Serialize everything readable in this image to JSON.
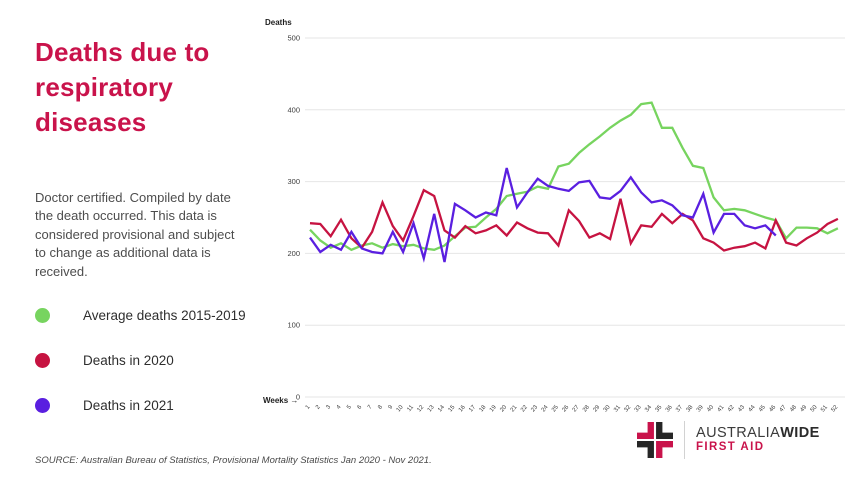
{
  "left_panel": {
    "title": "Deaths due to respiratory diseases",
    "title_color": "#c9134b",
    "description": "Doctor certified. Compiled by date the death occurred. This data is considered provisional and subject to change as additional data is received.",
    "legend": [
      {
        "label": "Average deaths 2015-2019",
        "color": "#77d45f"
      },
      {
        "label": "Deaths in 2020",
        "color": "#c61341"
      },
      {
        "label": "Deaths in 2021",
        "color": "#5a1fe0"
      }
    ],
    "source": "SOURCE: Australian Bureau of Statistics, Provisional Mortality Statistics Jan 2020 - Nov 2021."
  },
  "chart_data": {
    "type": "line",
    "title": "",
    "ylabel": "Deaths",
    "xlabel": "Weeks",
    "xlabel_display": "Weeks →",
    "ylim": [
      0,
      500
    ],
    "yticks": [
      0,
      100,
      200,
      300,
      400,
      500
    ],
    "grid": true,
    "legend_position": "left-panel",
    "x": [
      1,
      2,
      3,
      4,
      5,
      6,
      7,
      8,
      9,
      10,
      11,
      12,
      13,
      14,
      15,
      16,
      17,
      18,
      19,
      20,
      21,
      22,
      23,
      24,
      25,
      26,
      27,
      28,
      29,
      30,
      31,
      32,
      33,
      34,
      35,
      36,
      37,
      38,
      39,
      40,
      41,
      42,
      43,
      44,
      45,
      46,
      47,
      48,
      49,
      50,
      51,
      52
    ],
    "series": [
      {
        "name": "Average deaths 2015-2019",
        "color": "#77d45f",
        "values": [
          233,
          218,
          208,
          214,
          205,
          211,
          214,
          208,
          213,
          210,
          212,
          207,
          205,
          211,
          224,
          236,
          237,
          250,
          262,
          280,
          283,
          286,
          293,
          290,
          321,
          325,
          340,
          352,
          363,
          375,
          385,
          393,
          408,
          410,
          375,
          375,
          347,
          322,
          319,
          278,
          260,
          262,
          260,
          255,
          250,
          246,
          221,
          236,
          236,
          235,
          228,
          235
        ]
      },
      {
        "name": "Deaths in 2020",
        "color": "#c61341",
        "values": [
          242,
          241,
          224,
          247,
          221,
          208,
          230,
          271,
          238,
          218,
          252,
          288,
          280,
          232,
          222,
          238,
          228,
          232,
          239,
          225,
          243,
          235,
          229,
          228,
          211,
          260,
          245,
          222,
          228,
          220,
          276,
          214,
          239,
          237,
          255,
          242,
          255,
          246,
          221,
          215,
          204,
          208,
          210,
          215,
          207,
          246,
          215,
          211,
          221,
          229,
          241,
          248
        ]
      },
      {
        "name": "Deaths in 2021",
        "color": "#5a1fe0",
        "values": [
          222,
          202,
          212,
          205,
          230,
          207,
          202,
          200,
          230,
          202,
          242,
          193,
          255,
          188,
          269,
          260,
          250,
          257,
          253,
          319,
          264,
          285,
          304,
          294,
          290,
          287,
          299,
          301,
          278,
          276,
          287,
          306,
          285,
          271,
          274,
          267,
          253,
          250,
          283,
          229,
          255,
          255,
          239,
          235,
          239,
          225
        ]
      }
    ]
  },
  "logo": {
    "brand_main": "AUSTRALIA",
    "brand_bold": "WIDE",
    "brand_sub": "FIRST AID",
    "accent": "#c9134b",
    "dark": "#262626"
  }
}
